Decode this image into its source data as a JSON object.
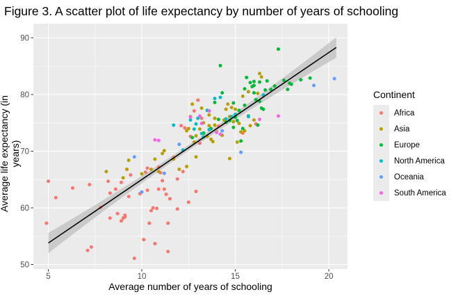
{
  "chart_data": {
    "type": "scatter",
    "title": "Figure 3. A scatter plot of life expectancy by number of years of schooling",
    "xlabel": "Average number of years of schooling",
    "ylabel": "Average life expectancy (in years)",
    "xlim": [
      4.2,
      21.0
    ],
    "ylim": [
      49.2,
      92.5
    ],
    "xticks": [
      5,
      10,
      15,
      20
    ],
    "yticks": [
      50,
      60,
      70,
      80,
      90
    ],
    "grid": true,
    "legend": {
      "title": "Continent",
      "position": "right"
    },
    "trend": {
      "x0": 5.0,
      "y0": 53.8,
      "x1": 20.4,
      "y1": 88.3,
      "se_halfwidth_ends": 1.8,
      "se_halfwidth_mid": 0.5,
      "color": "#000000",
      "band_color": "#999999"
    },
    "series": [
      {
        "name": "Africa",
        "color": "#F8766D",
        "points": [
          [
            5.0,
            64.7
          ],
          [
            4.9,
            57.3
          ],
          [
            5.4,
            61.8
          ],
          [
            6.3,
            63.5
          ],
          [
            7.1,
            52.5
          ],
          [
            7.3,
            53.1
          ],
          [
            7.2,
            64.1
          ],
          [
            7.8,
            60.1
          ],
          [
            8.2,
            64.7
          ],
          [
            8.3,
            62.6
          ],
          [
            8.3,
            58.2
          ],
          [
            8.6,
            63.3
          ],
          [
            8.7,
            59.0
          ],
          [
            8.9,
            57.7
          ],
          [
            9.0,
            58.2
          ],
          [
            8.9,
            64.5
          ],
          [
            9.1,
            58.7
          ],
          [
            9.1,
            58.4
          ],
          [
            9.2,
            66.8
          ],
          [
            9.3,
            62.0
          ],
          [
            9.6,
            51.1
          ],
          [
            9.9,
            62.5
          ],
          [
            10.1,
            54.4
          ],
          [
            10.2,
            66.3
          ],
          [
            10.3,
            67.0
          ],
          [
            10.3,
            63.1
          ],
          [
            10.4,
            57.3
          ],
          [
            10.5,
            59.5
          ],
          [
            10.6,
            60.0
          ],
          [
            10.7,
            53.7
          ],
          [
            10.8,
            59.9
          ],
          [
            10.9,
            63.3
          ],
          [
            10.9,
            67.2
          ],
          [
            11.0,
            66.2
          ],
          [
            11.1,
            64.8
          ],
          [
            11.2,
            63.3
          ],
          [
            11.3,
            62.4
          ],
          [
            11.4,
            57.3
          ],
          [
            11.4,
            52.3
          ],
          [
            11.5,
            61.6
          ],
          [
            11.7,
            68.9
          ],
          [
            11.9,
            65.1
          ],
          [
            11.9,
            59.8
          ],
          [
            12.1,
            74.5
          ],
          [
            12.2,
            66.4
          ],
          [
            12.3,
            74.1
          ],
          [
            12.5,
            61.0
          ],
          [
            12.6,
            72.6
          ],
          [
            12.8,
            77.1
          ],
          [
            12.9,
            62.9
          ],
          [
            13.0,
            79.0
          ],
          [
            13.1,
            71.4
          ],
          [
            13.2,
            75.8
          ],
          [
            13.5,
            77.2
          ],
          [
            14.1,
            74.4
          ],
          [
            15.4,
            73.2
          ],
          [
            16.1,
            74.8
          ],
          [
            9.4,
            65.8
          ]
        ]
      },
      {
        "name": "Asia",
        "color": "#B79F00",
        "points": [
          [
            8.1,
            66.4
          ],
          [
            9.0,
            65.3
          ],
          [
            9.2,
            66.8
          ],
          [
            9.3,
            68.4
          ],
          [
            10.0,
            66.0
          ],
          [
            10.5,
            66.8
          ],
          [
            10.7,
            68.6
          ],
          [
            10.9,
            66.4
          ],
          [
            11.1,
            69.6
          ],
          [
            11.2,
            70.1
          ],
          [
            11.7,
            68.6
          ],
          [
            12.0,
            66.8
          ],
          [
            12.4,
            67.3
          ],
          [
            12.4,
            73.6
          ],
          [
            12.5,
            74.0
          ],
          [
            12.6,
            76.1
          ],
          [
            12.7,
            78.3
          ],
          [
            12.8,
            71.6
          ],
          [
            12.9,
            69.0
          ],
          [
            12.9,
            72.7
          ],
          [
            13.1,
            73.9
          ],
          [
            13.2,
            77.6
          ],
          [
            13.3,
            75.0
          ],
          [
            13.5,
            72.6
          ],
          [
            13.6,
            74.5
          ],
          [
            13.6,
            76.4
          ],
          [
            13.7,
            72.1
          ],
          [
            13.8,
            71.7
          ],
          [
            13.9,
            74.6
          ],
          [
            13.9,
            75.8
          ],
          [
            14.0,
            73.4
          ],
          [
            14.3,
            72.8
          ],
          [
            14.4,
            75.5
          ],
          [
            14.5,
            77.4
          ],
          [
            14.6,
            78.3
          ],
          [
            14.7,
            76.1
          ],
          [
            14.7,
            68.7
          ],
          [
            14.8,
            77.7
          ],
          [
            14.9,
            75.2
          ],
          [
            15.0,
            77.4
          ],
          [
            15.1,
            71.6
          ],
          [
            15.2,
            74.9
          ],
          [
            15.3,
            73.4
          ],
          [
            15.4,
            79.7
          ],
          [
            15.5,
            73.6
          ],
          [
            15.7,
            80.5
          ],
          [
            16.3,
            83.7
          ],
          [
            16.4,
            83.1
          ],
          [
            16.2,
            80.2
          ],
          [
            16.0,
            75.5
          ],
          [
            15.8,
            74.5
          ]
        ]
      },
      {
        "name": "Europe",
        "color": "#00BA38",
        "points": [
          [
            12.7,
            72.4
          ],
          [
            13.3,
            73.2
          ],
          [
            13.7,
            74.0
          ],
          [
            13.9,
            78.6
          ],
          [
            14.1,
            75.6
          ],
          [
            14.2,
            85.1
          ],
          [
            14.3,
            80.3
          ],
          [
            14.5,
            75.1
          ],
          [
            14.7,
            75.4
          ],
          [
            14.9,
            74.2
          ],
          [
            15.0,
            76.0
          ],
          [
            15.1,
            75.4
          ],
          [
            15.2,
            77.2
          ],
          [
            15.3,
            71.8
          ],
          [
            15.4,
            74.0
          ],
          [
            15.5,
            78.1
          ],
          [
            15.6,
            83.0
          ],
          [
            15.7,
            76.2
          ],
          [
            15.8,
            82.1
          ],
          [
            15.9,
            81.4
          ],
          [
            16.0,
            82.3
          ],
          [
            16.0,
            81.6
          ],
          [
            16.1,
            79.1
          ],
          [
            16.2,
            74.6
          ],
          [
            16.3,
            82.2
          ],
          [
            16.3,
            78.8
          ],
          [
            16.5,
            77.4
          ],
          [
            16.6,
            80.8
          ],
          [
            16.7,
            82.4
          ],
          [
            16.9,
            80.9
          ],
          [
            17.1,
            81.5
          ],
          [
            17.3,
            88.0
          ],
          [
            17.6,
            82.5
          ],
          [
            17.9,
            82.0
          ],
          [
            18.0,
            81.8
          ],
          [
            18.5,
            82.6
          ],
          [
            19.0,
            82.9
          ],
          [
            16.0,
            80.3
          ],
          [
            16.4,
            77.6
          ],
          [
            15.5,
            81.0
          ],
          [
            14.9,
            78.5
          ],
          [
            17.8,
            80.9
          ]
        ]
      },
      {
        "name": "North America",
        "color": "#00BFC4",
        "points": [
          [
            11.7,
            74.6
          ],
          [
            12.6,
            75.5
          ],
          [
            12.8,
            73.9
          ],
          [
            12.9,
            74.8
          ],
          [
            13.2,
            73.1
          ],
          [
            13.3,
            72.5
          ],
          [
            13.5,
            77.2
          ],
          [
            13.6,
            73.8
          ],
          [
            13.9,
            79.3
          ],
          [
            14.2,
            79.5
          ],
          [
            14.5,
            75.7
          ],
          [
            14.8,
            76.1
          ],
          [
            15.0,
            76.5
          ],
          [
            15.7,
            76.1
          ],
          [
            16.5,
            79.9
          ],
          [
            13.0,
            75.8
          ],
          [
            12.2,
            70.2
          ]
        ]
      },
      {
        "name": "Oceania",
        "color": "#619CFF",
        "points": [
          [
            9.6,
            69.0
          ],
          [
            10.0,
            62.8
          ],
          [
            11.2,
            66.1
          ],
          [
            12.0,
            71.2
          ],
          [
            14.3,
            73.6
          ],
          [
            15.3,
            69.8
          ],
          [
            19.2,
            81.6
          ],
          [
            20.3,
            82.8
          ]
        ]
      },
      {
        "name": "South America",
        "color": "#F564E3",
        "points": [
          [
            10.7,
            72.0
          ],
          [
            10.9,
            71.9
          ],
          [
            12.6,
            76.0
          ],
          [
            13.1,
            76.2
          ],
          [
            13.2,
            74.9
          ],
          [
            13.6,
            77.1
          ],
          [
            14.0,
            73.3
          ],
          [
            14.2,
            73.0
          ],
          [
            16.3,
            75.6
          ],
          [
            17.3,
            76.2
          ]
        ]
      }
    ]
  }
}
